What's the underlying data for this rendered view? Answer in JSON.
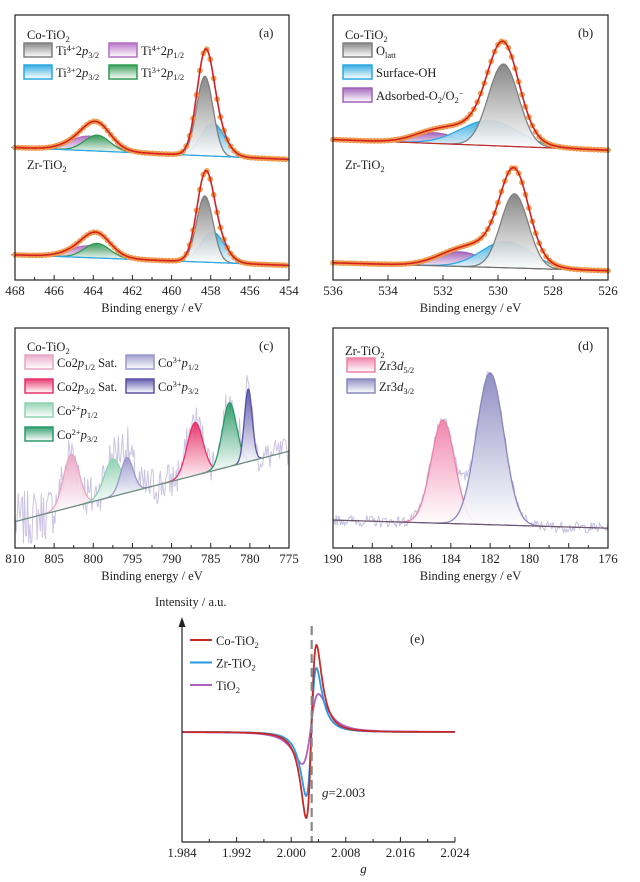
{
  "chart_data": [
    {
      "id": "a",
      "type": "area",
      "panel_label": "(a)",
      "xlabel": "Binding energy / eV",
      "xlim": [
        468,
        454
      ],
      "xticks": [
        468,
        466,
        464,
        462,
        460,
        458,
        456,
        454
      ],
      "ylim": [
        0,
        10
      ],
      "grid": false,
      "legend": "top-left",
      "colors": {
        "envelope": "#d42020",
        "points": "#f3a24e"
      },
      "legend_items": [
        {
          "key": "ti4_32",
          "color": "#808080",
          "parts": [
            {
              "t": "Ti"
            },
            {
              "t": "4+",
              "s": "sup"
            },
            {
              "t": "2"
            },
            {
              "t": "p",
              "s": "i"
            },
            {
              "t": "3/2",
              "s": "sub"
            }
          ]
        },
        {
          "key": "ti4_12",
          "color": "#b46cc4",
          "parts": [
            {
              "t": "Ti"
            },
            {
              "t": "4+",
              "s": "sup"
            },
            {
              "t": "2"
            },
            {
              "t": "p",
              "s": "i"
            },
            {
              "t": "1/2",
              "s": "sub"
            }
          ]
        },
        {
          "key": "ti3_32",
          "color": "#2aa8e0",
          "parts": [
            {
              "t": "Ti"
            },
            {
              "t": "3+",
              "s": "sup"
            },
            {
              "t": "2"
            },
            {
              "t": "p",
              "s": "i"
            },
            {
              "t": "3/2",
              "s": "sub"
            }
          ]
        },
        {
          "key": "ti3_12",
          "color": "#2e9a50",
          "parts": [
            {
              "t": "Ti"
            },
            {
              "t": "3+",
              "s": "sup"
            },
            {
              "t": "2"
            },
            {
              "t": "p",
              "s": "i"
            },
            {
              "t": "1/2",
              "s": "sub"
            }
          ]
        }
      ],
      "spectra": [
        {
          "sample": [
            {
              "t": "Co-TiO"
            },
            {
              "t": "2",
              "s": "sub"
            }
          ],
          "baseline": [
            5.0,
            4.55
          ],
          "peaks": [
            {
              "key": "ti4_12",
              "center": 464.2,
              "height": 0.55,
              "sigma": 1.0
            },
            {
              "key": "ti3_12",
              "center": 463.8,
              "height": 0.6,
              "sigma": 0.65
            },
            {
              "key": "ti3_32",
              "center": 457.9,
              "height": 1.25,
              "sigma": 0.6
            },
            {
              "key": "ti4_32",
              "center": 458.3,
              "height": 3.0,
              "sigma": 0.42
            }
          ]
        },
        {
          "sample": [
            {
              "t": "Zr-TiO"
            },
            {
              "t": "2",
              "s": "sub"
            }
          ],
          "baseline": [
            0.95,
            0.55
          ],
          "peaks": [
            {
              "key": "ti4_12",
              "center": 464.2,
              "height": 0.45,
              "sigma": 1.0
            },
            {
              "key": "ti3_12",
              "center": 463.8,
              "height": 0.55,
              "sigma": 0.65
            },
            {
              "key": "ti3_32",
              "center": 457.9,
              "height": 1.15,
              "sigma": 0.6
            },
            {
              "key": "ti4_32",
              "center": 458.3,
              "height": 2.5,
              "sigma": 0.42
            }
          ]
        }
      ]
    },
    {
      "id": "b",
      "type": "area",
      "panel_label": "(b)",
      "xlabel": "Binding energy / eV",
      "xlim": [
        536,
        526
      ],
      "xticks": [
        536,
        534,
        532,
        530,
        528,
        526
      ],
      "ylim": [
        0,
        10
      ],
      "grid": false,
      "legend": "top-left",
      "colors": {
        "envelope": "#d42020",
        "points": "#f3a24e"
      },
      "legend_items": [
        {
          "key": "olatt",
          "color": "#808080",
          "parts": [
            {
              "t": "O"
            },
            {
              "t": "latt",
              "s": "sub"
            }
          ]
        },
        {
          "key": "oh",
          "color": "#2aa8e0",
          "parts": [
            {
              "t": "Surface-OH"
            }
          ]
        },
        {
          "key": "ads",
          "color": "#a060b8",
          "parts": [
            {
              "t": "Adsorbed-O"
            },
            {
              "t": "2",
              "s": "sub"
            },
            {
              "t": "/O"
            },
            {
              "t": "2",
              "s": "sub"
            },
            {
              "t": "−",
              "s": "sup"
            }
          ]
        }
      ],
      "spectra": [
        {
          "sample": [
            {
              "t": "Co-TiO"
            },
            {
              "t": "2",
              "s": "sub"
            }
          ],
          "baseline": [
            5.3,
            4.9
          ],
          "peaks": [
            {
              "key": "ads",
              "center": 532.3,
              "height": 0.4,
              "sigma": 0.8
            },
            {
              "key": "oh",
              "center": 530.3,
              "height": 0.95,
              "sigma": 1.05
            },
            {
              "key": "olatt",
              "center": 529.8,
              "height": 3.1,
              "sigma": 0.55
            }
          ]
        },
        {
          "sample": [
            {
              "t": "Zr-TiO"
            },
            {
              "t": "2",
              "s": "sub"
            }
          ],
          "baseline": [
            0.65,
            0.35
          ],
          "peaks": [
            {
              "key": "ads",
              "center": 531.4,
              "height": 0.55,
              "sigma": 0.85
            },
            {
              "key": "oh",
              "center": 529.7,
              "height": 1.0,
              "sigma": 0.9
            },
            {
              "key": "olatt",
              "center": 529.4,
              "height": 2.8,
              "sigma": 0.5
            }
          ]
        }
      ]
    },
    {
      "id": "c",
      "type": "area",
      "panel_label": "(c)",
      "xlabel": "Binding energy / eV",
      "xlim": [
        810,
        775
      ],
      "xticks": [
        810,
        805,
        800,
        795,
        790,
        785,
        780,
        775
      ],
      "ylim": [
        0,
        10
      ],
      "grid": false,
      "legend": "top-left",
      "colors": {
        "raw": "#cbc4e2",
        "baseline": "#6a8a80"
      },
      "legend_items": [
        {
          "key": "s12",
          "color": "#e9a6c4",
          "parts": [
            {
              "t": "Co2"
            },
            {
              "t": "p",
              "s": "i"
            },
            {
              "t": "1/2",
              "s": "sub"
            },
            {
              "t": " Sat."
            }
          ]
        },
        {
          "key": "c3_12",
          "color": "#9a98cc",
          "parts": [
            {
              "t": "Co"
            },
            {
              "t": "3+",
              "s": "sup"
            },
            {
              "t": "p",
              "s": "i"
            },
            {
              "t": "1/2",
              "s": "sub"
            }
          ]
        },
        {
          "key": "s32",
          "color": "#e8306a",
          "parts": [
            {
              "t": "Co2"
            },
            {
              "t": "p",
              "s": "i"
            },
            {
              "t": "3/2",
              "s": "sub"
            },
            {
              "t": " Sat."
            }
          ]
        },
        {
          "key": "c3_32",
          "color": "#5a52a8",
          "parts": [
            {
              "t": "Co"
            },
            {
              "t": "3+",
              "s": "sup"
            },
            {
              "t": "p",
              "s": "i"
            },
            {
              "t": "3/2",
              "s": "sub"
            }
          ]
        },
        {
          "key": "c2_12",
          "color": "#8fd2b0",
          "parts": [
            {
              "t": "Co"
            },
            {
              "t": "2+",
              "s": "sup"
            },
            {
              "t": "p",
              "s": "i"
            },
            {
              "t": "1/2",
              "s": "sub"
            }
          ]
        },
        {
          "key": "c2_32",
          "color": "#2a9a68",
          "parts": [
            {
              "t": "Co"
            },
            {
              "t": "2+",
              "s": "sup"
            },
            {
              "t": "p",
              "s": "i"
            },
            {
              "t": "3/2",
              "s": "sub"
            }
          ]
        }
      ],
      "spectra": [
        {
          "sample": [
            {
              "t": "Co-TiO"
            },
            {
              "t": "2",
              "s": "sub"
            }
          ],
          "baseline": [
            1.2,
            4.4
          ],
          "raw_noise": true,
          "peaks": [
            {
              "key": "s12",
              "center": 802.8,
              "height": 2.4,
              "sigma": 1.0
            },
            {
              "key": "c2_12",
              "center": 797.5,
              "height": 1.7,
              "sigma": 1.1
            },
            {
              "key": "c3_12",
              "center": 795.7,
              "height": 1.6,
              "sigma": 0.8
            },
            {
              "key": "s32",
              "center": 787.0,
              "height": 2.4,
              "sigma": 1.0
            },
            {
              "key": "c2_32",
              "center": 782.6,
              "height": 2.9,
              "sigma": 0.9
            },
            {
              "key": "c3_32",
              "center": 780.2,
              "height": 3.3,
              "sigma": 0.5
            }
          ]
        }
      ]
    },
    {
      "id": "d",
      "type": "area",
      "panel_label": "(d)",
      "xlabel": "Binding energy / eV",
      "xlim": [
        190,
        176
      ],
      "xticks": [
        190,
        188,
        186,
        184,
        182,
        180,
        178,
        176
      ],
      "ylim": [
        0,
        10
      ],
      "grid": false,
      "legend": "top-left",
      "colors": {
        "raw": "#c4c0e4",
        "baseline": "#6a5a70"
      },
      "legend_items": [
        {
          "key": "d52",
          "color": "#f080a8",
          "parts": [
            {
              "t": "Zr3"
            },
            {
              "t": "d",
              "s": "i"
            },
            {
              "t": "5/2",
              "s": "sub"
            }
          ]
        },
        {
          "key": "d32",
          "color": "#8a88c0",
          "parts": [
            {
              "t": "Zr3"
            },
            {
              "t": "d",
              "s": "i"
            },
            {
              "t": "3/2",
              "s": "sub"
            }
          ]
        }
      ],
      "spectra": [
        {
          "sample": [
            {
              "t": "Zr-TiO"
            },
            {
              "t": "2",
              "s": "sub"
            }
          ],
          "baseline": [
            1.27,
            0.9
          ],
          "raw_noise": true,
          "peaks": [
            {
              "key": "d52",
              "center": 184.4,
              "height": 4.7,
              "sigma": 0.6
            },
            {
              "key": "d32",
              "center": 182.0,
              "height": 6.9,
              "sigma": 0.7
            }
          ]
        }
      ]
    },
    {
      "id": "e",
      "type": "line",
      "panel_label": "(e)",
      "xlabel": "g",
      "ylabel": "Intensity / a.u.",
      "xlim": [
        1.984,
        2.024
      ],
      "xticks": [
        "1.984",
        "1.992",
        "2.000",
        "2.008",
        "2.016",
        "2.024"
      ],
      "ylim": [
        -1.1,
        1.14
      ],
      "grid": false,
      "legend": "top-left",
      "annotation": {
        "g_value": 2.003,
        "text_prefix": "g",
        "text_rest": "=2.003"
      },
      "series": [
        {
          "parts": [
            {
              "t": "Co-TiO"
            },
            {
              "t": "2",
              "s": "sub"
            }
          ],
          "color": "#c82828",
          "trough_g": 2.0022,
          "trough": -0.86,
          "peak_g": 2.0037,
          "peak": 0.87
        },
        {
          "parts": [
            {
              "t": "Zr-TiO"
            },
            {
              "t": "2",
              "s": "sub"
            }
          ],
          "color": "#2a9ae0",
          "trough_g": 2.0022,
          "trough": -0.64,
          "peak_g": 2.0037,
          "peak": 0.64
        },
        {
          "parts": [
            {
              "t": "TiO"
            },
            {
              "t": "2",
              "s": "sub"
            }
          ],
          "color": "#b060c0",
          "trough_g": 2.0016,
          "trough": -0.32,
          "peak_g": 2.004,
          "peak": 0.38
        }
      ]
    }
  ]
}
